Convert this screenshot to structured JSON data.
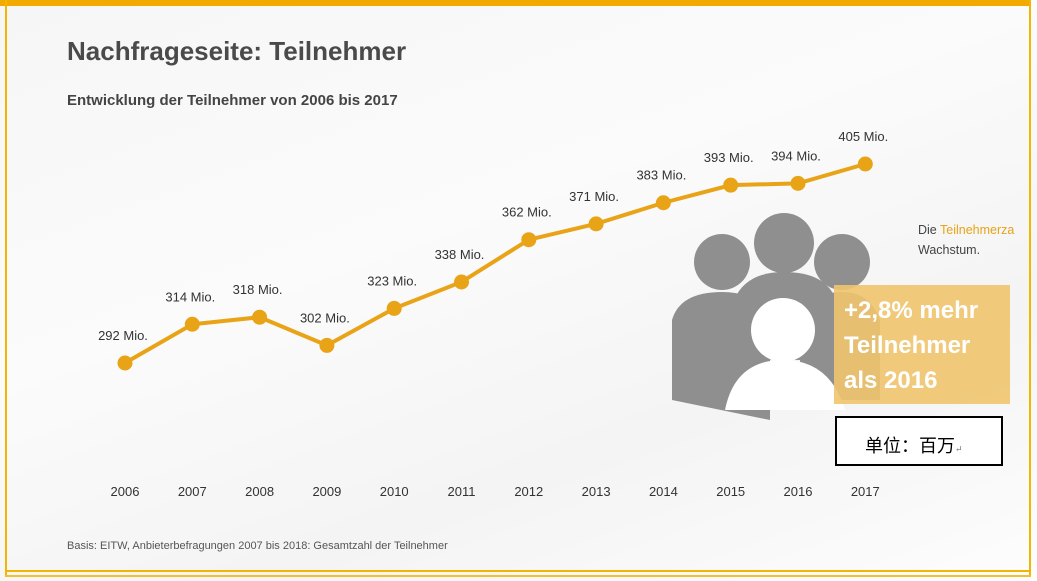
{
  "title": "Nachfrageseite: Teilnehmer",
  "subtitle": "Entwicklung der Teilnehmer von 2006 bis 2017",
  "source": "Basis: EITW, Anbieterbefragungen 2007 bis 2018: Gesamtzahl der Teilnehmer",
  "side_text": {
    "prefix": "Die ",
    "highlight": "Teilnehmerza",
    "line2": "Wachstum."
  },
  "callout": {
    "line1": "+2,8% mehr",
    "line2": "Teilnehmer",
    "line3": "als 2016"
  },
  "unit_box": {
    "text": "单位：百万",
    "return_mark": "↵"
  },
  "colors": {
    "line": "#e8a317",
    "accent": "#f2a900",
    "callout_bg": "#f0c46e",
    "silhouette": "#8f8f8f"
  },
  "chart_data": {
    "type": "line",
    "categories": [
      "2006",
      "2007",
      "2008",
      "2009",
      "2010",
      "2011",
      "2012",
      "2013",
      "2014",
      "2015",
      "2016",
      "2017"
    ],
    "values": [
      292,
      314,
      318,
      302,
      323,
      338,
      362,
      371,
      383,
      393,
      394,
      405
    ],
    "data_labels": [
      "292 Mio.",
      "314 Mio.",
      "318 Mio.",
      "302 Mio.",
      "323 Mio.",
      "338 Mio.",
      "362 Mio.",
      "371 Mio.",
      "383 Mio.",
      "393 Mio.",
      "394 Mio.",
      "405 Mio."
    ],
    "unit": "Mio.",
    "grid": false,
    "y_axis_visible": false
  }
}
